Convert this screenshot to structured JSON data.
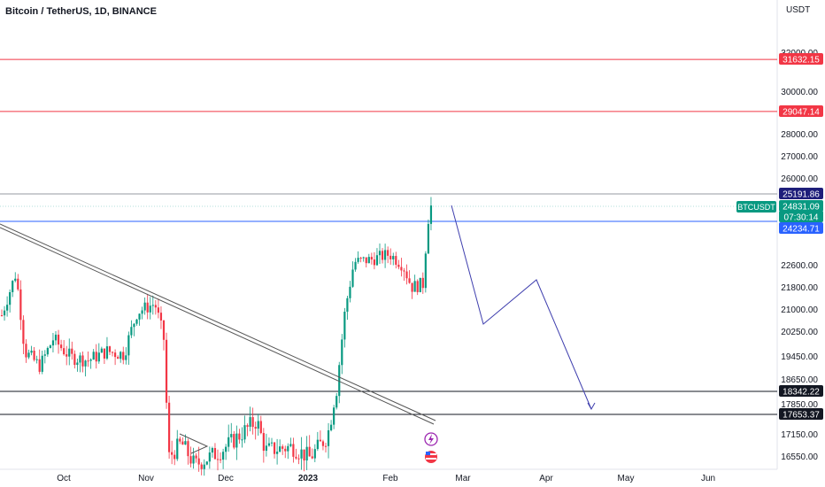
{
  "header": {
    "title": "Bitcoin / TetherUS, 1D, BINANCE"
  },
  "price_axis": {
    "currency": "USDT",
    "ticks": [
      "32000.00",
      "30000.00",
      "28000.00",
      "27000.00",
      "26000.00",
      "24000.00",
      "22600.00",
      "21800.00",
      "21000.00",
      "20250.00",
      "19450.00",
      "18650.00",
      "17850.00",
      "17150.00",
      "16550.00"
    ],
    "labels": [
      {
        "text": "31632.15",
        "color": "#f23645"
      },
      {
        "text": "29047.14",
        "color": "#f23645"
      },
      {
        "text": "25191.86",
        "color": "#1e1e7a"
      },
      {
        "text": "24831.09",
        "color": "#089981"
      },
      {
        "text": "07:30:14",
        "color": "#089981"
      },
      {
        "text": "24234.71",
        "color": "#2962ff"
      },
      {
        "text": "18342.22",
        "color": "#131722"
      },
      {
        "text": "17653.37",
        "color": "#131722"
      }
    ],
    "symbol_badge": "BTCUSDT"
  },
  "time_axis": {
    "labels": [
      "Oct",
      "Nov",
      "Dec",
      "2023",
      "Feb",
      "Mar",
      "Apr",
      "May",
      "Jun"
    ]
  },
  "colors": {
    "up": "#089981",
    "down": "#f23645",
    "resistance": "#f23645",
    "support": "#131722",
    "level": "#2962ff",
    "projection": "#3f3fae"
  },
  "chart_data": {
    "type": "candlestick",
    "title": "Bitcoin / TetherUS, 1D, BINANCE",
    "y_unit": "USDT",
    "last_price": 24831.09,
    "countdown": "07:30:14",
    "horizontal_levels": [
      31632.15,
      29047.14,
      25191.86,
      24234.71,
      18342.22,
      17653.37
    ],
    "x_axis_labels": [
      "Oct",
      "Nov",
      "Dec",
      "2023",
      "Feb",
      "Mar",
      "Apr",
      "May",
      "Jun"
    ],
    "trendline": "descending trendline from mid-September through November",
    "projection": "hand-drawn path forecasting a drop toward ~17800 by late April",
    "approx_closes": [
      {
        "period": "Oct",
        "close": 19400
      },
      {
        "period": "early Nov",
        "close": 21000
      },
      {
        "period": "mid Nov",
        "close": 16500
      },
      {
        "period": "Dec",
        "close": 17000
      },
      {
        "period": "2023",
        "close": 16600
      },
      {
        "period": "mid Jan",
        "close": 21000
      },
      {
        "period": "late Jan",
        "close": 23000
      },
      {
        "period": "Feb",
        "close": 21800
      },
      {
        "period": "mid Feb",
        "close": 24831.09
      }
    ],
    "grid": false
  },
  "icons": {
    "lightning": "lightning-icon",
    "flag": "us-flag-icon"
  }
}
